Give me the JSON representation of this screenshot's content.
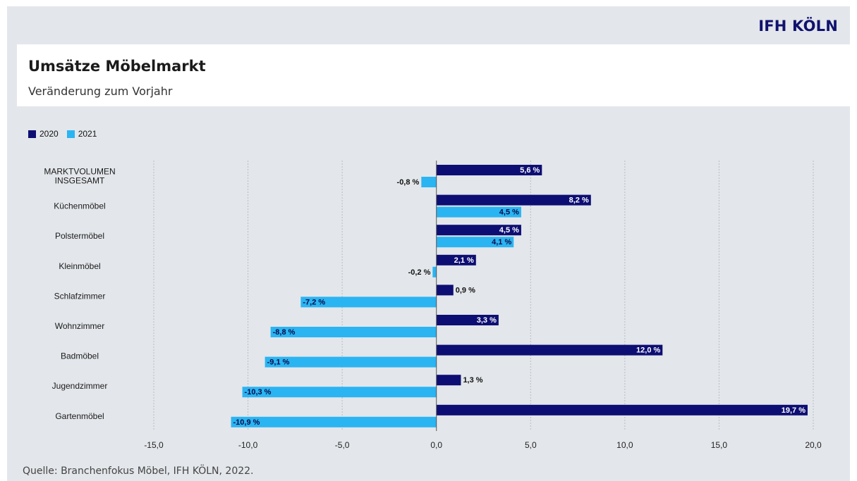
{
  "header": {
    "brand": "IFH KÖLN",
    "title": "Umsätze Möbelmarkt",
    "subtitle": "Veränderung zum Vorjahr"
  },
  "footer": {
    "source": "Quelle: Branchenfokus Möbel, IFH KÖLN, 2022."
  },
  "colors": {
    "series_2020": "#0d0e73",
    "series_2021": "#2ab4f2",
    "background": "#e3e6ea",
    "brand": "#10126e"
  },
  "chart_data": {
    "type": "bar",
    "orientation": "horizontal",
    "title": "Umsätze Möbelmarkt",
    "subtitle": "Veränderung zum Vorjahr",
    "legend_position": "top-left",
    "grid": true,
    "xlim": [
      -15,
      20
    ],
    "x_ticks": [
      "-15,0",
      "-10,0",
      "-5,0",
      "0,0",
      "5,0",
      "10,0",
      "15,0",
      "20,0"
    ],
    "x_tick_values": [
      -15,
      -10,
      -5,
      0,
      5,
      10,
      15,
      20
    ],
    "categories": [
      "MARKTVOLUMEN INSGESAMT",
      "Küchenmöbel",
      "Polstermöbel",
      "Kleinmöbel",
      "Schlafzimmer",
      "Wohnzimmer",
      "Badmöbel",
      "Jugendzimmer",
      "Gartenmöbel"
    ],
    "series": [
      {
        "name": "2020",
        "values": [
          5.6,
          8.2,
          4.5,
          2.1,
          0.9,
          3.3,
          12.0,
          1.3,
          19.7
        ],
        "labels": [
          "5,6 %",
          "8,2 %",
          "4,5 %",
          "2,1 %",
          "0,9 %",
          "3,3 %",
          "12,0 %",
          "1,3 %",
          "19,7 %"
        ]
      },
      {
        "name": "2021",
        "values": [
          -0.8,
          4.5,
          4.1,
          -0.2,
          -7.2,
          -8.8,
          -9.1,
          -10.3,
          -10.9
        ],
        "labels": [
          "-0,8 %",
          "4,5 %",
          "4,1 %",
          "-0,2 %",
          "-7,2 %",
          "-8,8 %",
          "-9,1 %",
          "-10,3 %",
          "-10,9 %"
        ]
      }
    ]
  }
}
